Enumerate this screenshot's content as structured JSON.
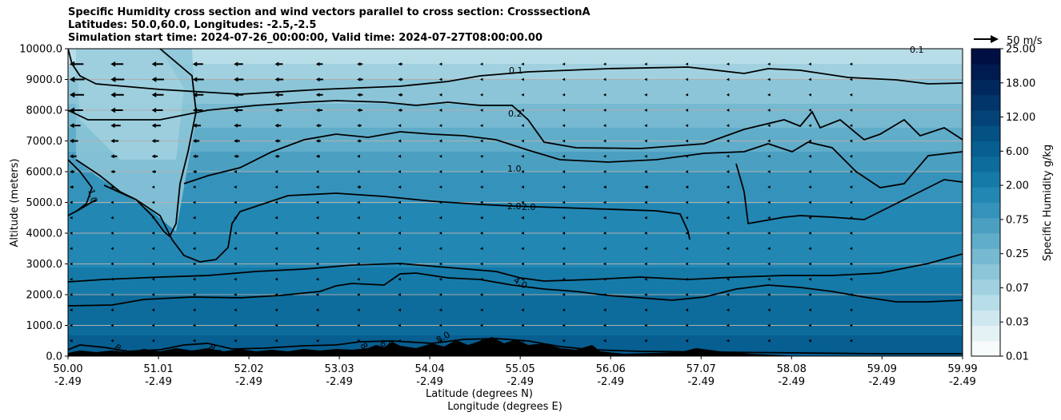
{
  "chart_data": {
    "type": "heatmap",
    "title_lines": [
      "Specific Humidity cross section and wind vectors parallel to cross section: CrosssectionA",
      "Latitudes: 50.0,60.0, Longitudes: -2.5,-2.5",
      "Simulation start time: 2024-07-26_00:00:00, Valid time: 2024-07-27T08:00:00.00"
    ],
    "ylabel": "Altitude (meters)",
    "xlabel": "Latitude (degrees N)",
    "xlabel2": "Longitude (degrees E)",
    "ylim": [
      0,
      10000
    ],
    "y_ticks": [
      "0.0",
      "1000.0",
      "2000.0",
      "3000.0",
      "4000.0",
      "5000.0",
      "6000.0",
      "7000.0",
      "8000.0",
      "9000.0",
      "10000.0"
    ],
    "x_ticks_lat": [
      "50.00",
      "51.01",
      "52.02",
      "53.03",
      "54.04",
      "55.05",
      "56.06",
      "57.07",
      "58.08",
      "59.09",
      "59.99"
    ],
    "x_ticks_lon": [
      "-2.49",
      "-2.49",
      "-2.49",
      "-2.49",
      "-2.49",
      "-2.49",
      "-2.49",
      "-2.49",
      "-2.49",
      "-2.49",
      "-2.49"
    ],
    "grid": "horizontal",
    "colorbar": {
      "label": "Specific Humidity g/kg",
      "ticks": [
        "0.01",
        "0.03",
        "0.07",
        "0.25",
        "0.75",
        "2.00",
        "6.00",
        "12.00",
        "18.00",
        "25.00"
      ],
      "colors": [
        "#f7fbfc",
        "#e4f2f5",
        "#cfe8ef",
        "#b7dde8",
        "#a1d1e0",
        "#8cc5d8",
        "#76b9d1",
        "#60adca",
        "#4ba0c2",
        "#3593bb",
        "#2287b3",
        "#157aa8",
        "#0d6c9c",
        "#075e90",
        "#045184",
        "#034377",
        "#02356a",
        "#01285c",
        "#001b4f",
        "#000f43"
      ]
    },
    "contour_levels": [
      {
        "level": 0.1,
        "label": "0.1"
      },
      {
        "level": 0.2,
        "label": "0.2"
      },
      {
        "level": 1.0,
        "label": "1.0"
      },
      {
        "level": 2.0,
        "label": "2.0"
      },
      {
        "level": 4.0,
        "label": "4.0"
      },
      {
        "level": 8.0,
        "label": "8.0"
      }
    ],
    "contour_labels": [
      "0.1",
      "0.2",
      "1.0",
      "2.0",
      "2.0",
      "4.0",
      "1.0",
      "0.1",
      "8.0",
      "8.0",
      "8.0",
      "8.0",
      "8.0"
    ],
    "quiver_key": {
      "label": "50 m/s",
      "value": 50,
      "unit": "m/s"
    },
    "wind_vector_rows_m": [
      9500,
      9000,
      8500,
      8000,
      7500,
      7000,
      6500,
      6000,
      5500,
      5000,
      4500,
      4000,
      3500,
      3000,
      2500,
      2000,
      1500,
      1000,
      500
    ],
    "wind_vector_max_speed_by_row_ms": [
      28,
      30,
      29,
      27,
      22,
      17,
      14,
      10,
      8,
      6,
      5,
      4,
      3,
      3,
      3,
      2,
      2,
      2,
      2
    ],
    "wind_direction": "northward component negative (arrows point toward lower latitude)"
  }
}
